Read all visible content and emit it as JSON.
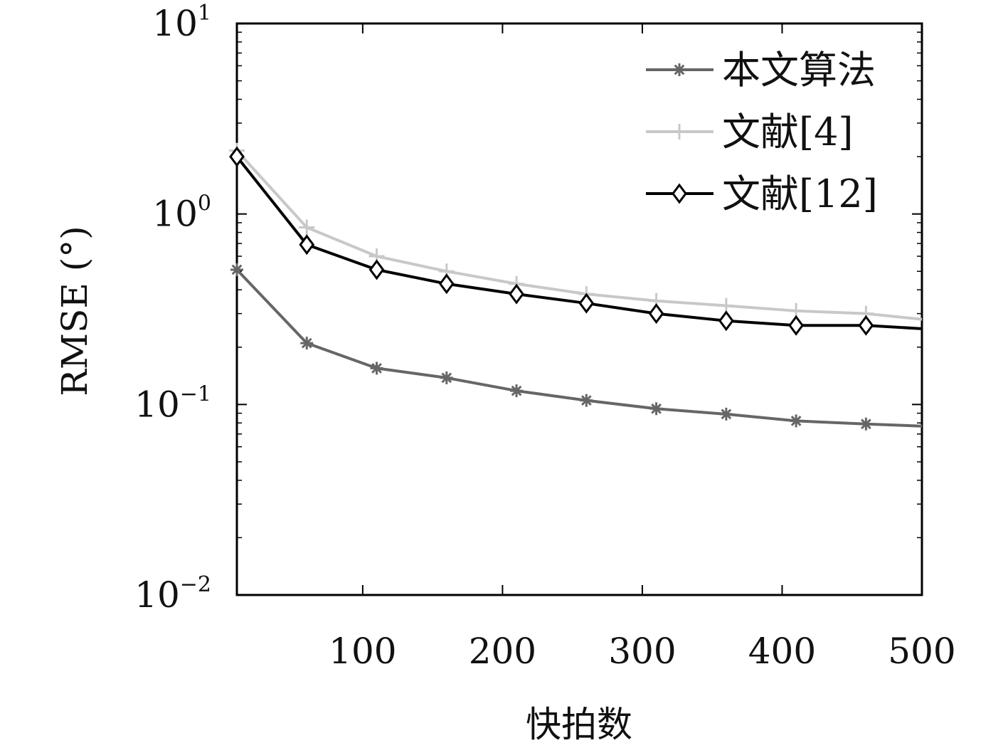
{
  "chart_data": {
    "type": "line",
    "title": "",
    "xlabel": "快拍数",
    "ylabel": "RMSE (°)",
    "xlim": [
      10,
      500
    ],
    "ylim": [
      0.01,
      10
    ],
    "yscale": "log",
    "grid": false,
    "legend_position": "top-right",
    "x_ticks": [
      100,
      200,
      300,
      400,
      500
    ],
    "x_tick_labels": [
      "100",
      "200",
      "300",
      "400",
      "500"
    ],
    "y_ticks": [
      {
        "value": 10,
        "base": "10",
        "exp": "1"
      },
      {
        "value": 1,
        "base": "10",
        "exp": "0"
      },
      {
        "value": 0.1,
        "base": "10",
        "exp": "−1"
      },
      {
        "value": 0.01,
        "base": "10",
        "exp": "−2"
      }
    ],
    "x": [
      10,
      60,
      110,
      160,
      210,
      260,
      310,
      360,
      410,
      460,
      500
    ],
    "series": [
      {
        "name": "文献[4]",
        "color": "#c8c8c8",
        "marker": "plus",
        "values": [
          2.15,
          0.85,
          0.6,
          0.5,
          0.43,
          0.38,
          0.35,
          0.33,
          0.31,
          0.3,
          0.28
        ]
      },
      {
        "name": "文献[12]",
        "color": "#000000",
        "marker": "diamond",
        "values": [
          2.0,
          0.69,
          0.51,
          0.43,
          0.38,
          0.34,
          0.3,
          0.275,
          0.26,
          0.26,
          0.25
        ]
      },
      {
        "name": "本文算法",
        "color": "#666666",
        "marker": "asterisk",
        "values": [
          0.51,
          0.21,
          0.155,
          0.138,
          0.118,
          0.105,
          0.095,
          0.089,
          0.082,
          0.079,
          0.077
        ]
      }
    ],
    "legend_order": [
      2,
      0,
      1
    ]
  }
}
